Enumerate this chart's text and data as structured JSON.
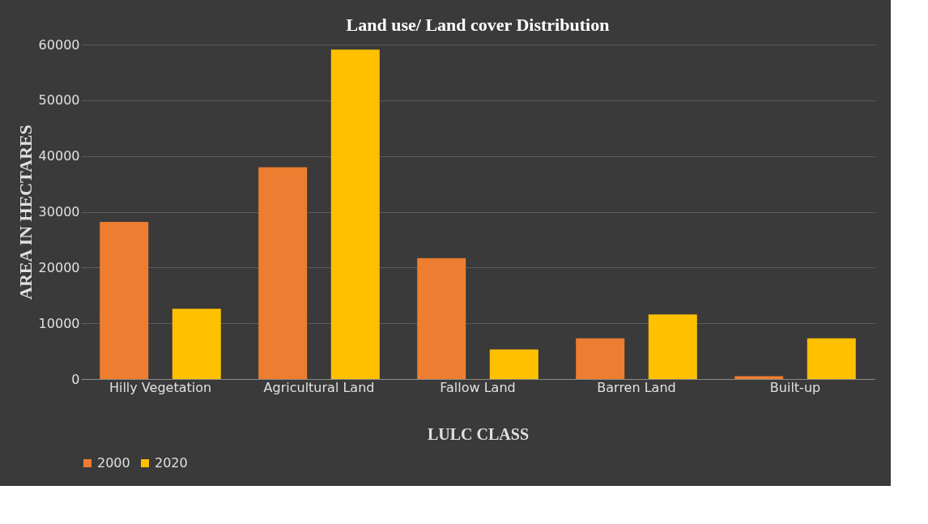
{
  "chart_data": {
    "type": "bar",
    "title": "Land use/ Land cover Distribution",
    "xlabel": "LULC CLASS",
    "ylabel": "AREA IN HECTARES",
    "categories": [
      "Hilly Vegetation",
      "Agricultural Land",
      "Fallow Land",
      "Barren Land",
      "Built-up"
    ],
    "series": [
      {
        "name": "2000",
        "color": "#ed7d31",
        "values": [
          28200,
          38000,
          21700,
          7300,
          500
        ]
      },
      {
        "name": "2020",
        "color": "#ffc000",
        "values": [
          12600,
          59100,
          5300,
          11600,
          7300
        ]
      }
    ],
    "ylim": [
      0,
      60000
    ],
    "yticks": [
      0,
      10000,
      20000,
      30000,
      40000,
      50000,
      60000
    ],
    "grid": "y",
    "legend": "bottom"
  }
}
